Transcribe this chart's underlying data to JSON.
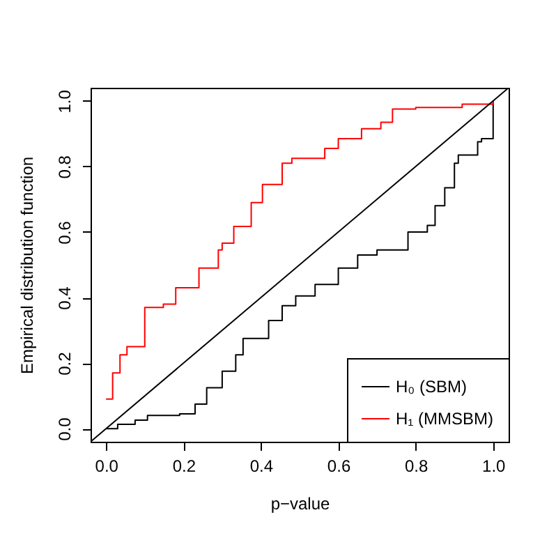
{
  "chart_data": {
    "type": "step",
    "xlabel": "p−value",
    "ylabel": "Empirical distribution function",
    "xlim": [
      -0.04,
      1.04
    ],
    "ylim": [
      -0.04,
      1.04
    ],
    "xticks": [
      {
        "value": 0,
        "label": "0.0"
      },
      {
        "value": 0.2,
        "label": "0.2"
      },
      {
        "value": 0.4,
        "label": "0.4"
      },
      {
        "value": 0.6,
        "label": "0.6"
      },
      {
        "value": 0.8,
        "label": "0.8"
      },
      {
        "value": 1,
        "label": "1.0"
      }
    ],
    "yticks": [
      {
        "value": 0,
        "label": "0.0"
      },
      {
        "value": 0.2,
        "label": "0.2"
      },
      {
        "value": 0.4,
        "label": "0.4"
      },
      {
        "value": 0.6,
        "label": "0.6"
      },
      {
        "value": 0.8,
        "label": "0.8"
      },
      {
        "value": 1,
        "label": "1.0"
      }
    ],
    "grid": false,
    "legend": "bottom right",
    "line_style": "solid",
    "marker": "none",
    "series": [
      {
        "name": "H₀ (SBM)",
        "color": "#000000",
        "x": [
          0,
          0.03,
          0.075,
          0.107,
          0.19,
          0.23,
          0.26,
          0.3,
          0.335,
          0.354,
          0.42,
          0.455,
          0.49,
          0.54,
          0.6,
          0.65,
          0.7,
          0.78,
          0.83,
          0.85,
          0.875,
          0.9,
          0.91,
          0.96,
          0.97,
          1.0
        ],
        "values": [
          0,
          0.013,
          0.026,
          0.04,
          0.045,
          0.075,
          0.125,
          0.175,
          0.225,
          0.275,
          0.33,
          0.375,
          0.405,
          0.44,
          0.49,
          0.53,
          0.545,
          0.6,
          0.62,
          0.68,
          0.735,
          0.81,
          0.835,
          0.875,
          0.885,
          1.0
        ]
      },
      {
        "name": "H₁ (MMSBM)",
        "color": "#ff0000",
        "x": [
          0,
          0.017,
          0.036,
          0.054,
          0.1,
          0.148,
          0.18,
          0.24,
          0.29,
          0.3,
          0.33,
          0.375,
          0.404,
          0.455,
          0.48,
          0.565,
          0.6,
          0.66,
          0.71,
          0.74,
          0.8,
          0.92,
          1.0
        ],
        "values": [
          0.09,
          0.17,
          0.225,
          0.25,
          0.37,
          0.38,
          0.43,
          0.49,
          0.545,
          0.566,
          0.617,
          0.69,
          0.745,
          0.81,
          0.825,
          0.855,
          0.885,
          0.915,
          0.935,
          0.975,
          0.98,
          0.99,
          1.0
        ]
      },
      {
        "color": "#000000",
        "type": "line",
        "x": [
          -0.04,
          1.04
        ],
        "values": [
          -0.04,
          1.04
        ]
      }
    ]
  }
}
